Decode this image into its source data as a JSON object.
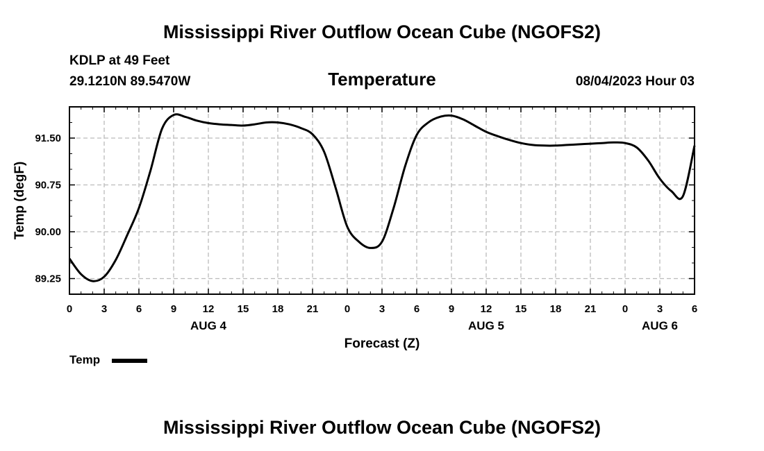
{
  "header": {
    "title": "Mississippi River Outflow Ocean Cube (NGOFS2)",
    "station": "KDLP at 49 Feet",
    "coords": "29.1210N  89.5470W",
    "subtitle": "Temperature",
    "timestamp": "08/04/2023 Hour 03"
  },
  "footer": {
    "title": "Mississippi River Outflow Ocean Cube (NGOFS2)"
  },
  "chart_data": {
    "type": "line",
    "title": "Temperature",
    "xlabel": "Forecast (Z)",
    "ylabel": "Temp (degF)",
    "xlim": [
      0,
      54
    ],
    "ylim": [
      89.0,
      92.0
    ],
    "grid": true,
    "legend_position": "bottom-left",
    "x_ticks": [
      0,
      3,
      6,
      9,
      12,
      15,
      18,
      21,
      24,
      27,
      30,
      33,
      36,
      39,
      42,
      45,
      48,
      51,
      54
    ],
    "x_tick_labels": [
      "0",
      "3",
      "6",
      "9",
      "12",
      "15",
      "18",
      "21",
      "0",
      "3",
      "6",
      "9",
      "12",
      "15",
      "18",
      "21",
      "0",
      "3",
      "6"
    ],
    "y_ticks": [
      89.25,
      90.0,
      90.75,
      91.5
    ],
    "y_tick_labels": [
      "89.25",
      "90.00",
      "90.75",
      "91.50"
    ],
    "day_labels": [
      {
        "x": 12,
        "label": "AUG 4"
      },
      {
        "x": 36,
        "label": "AUG 5"
      },
      {
        "x": 51,
        "label": "AUG 6"
      }
    ],
    "series": [
      {
        "name": "Temp",
        "color": "#000000",
        "x": [
          0,
          1,
          2,
          3,
          4,
          5,
          6,
          7,
          8,
          9,
          10,
          11,
          12,
          13,
          14,
          15,
          16,
          17,
          18,
          19,
          20,
          21,
          22,
          23,
          24,
          25,
          26,
          27,
          28,
          29,
          30,
          31,
          32,
          33,
          34,
          35,
          36,
          37,
          38,
          39,
          40,
          41,
          42,
          43,
          44,
          45,
          46,
          47,
          48,
          49,
          50,
          51,
          52,
          53,
          54
        ],
        "y": [
          89.57,
          89.32,
          89.21,
          89.28,
          89.55,
          89.95,
          90.38,
          90.98,
          91.65,
          91.87,
          91.84,
          91.78,
          91.74,
          91.72,
          91.71,
          91.7,
          91.72,
          91.75,
          91.75,
          91.72,
          91.66,
          91.56,
          91.28,
          90.7,
          90.08,
          89.84,
          89.74,
          89.84,
          90.38,
          91.05,
          91.55,
          91.75,
          91.84,
          91.86,
          91.8,
          91.7,
          91.6,
          91.53,
          91.47,
          91.42,
          91.39,
          91.38,
          91.38,
          91.39,
          91.4,
          91.41,
          91.42,
          91.43,
          91.42,
          91.35,
          91.14,
          90.85,
          90.65,
          90.57,
          91.38
        ]
      }
    ]
  },
  "legend": {
    "label": "Temp",
    "swatch_color": "#000000"
  }
}
